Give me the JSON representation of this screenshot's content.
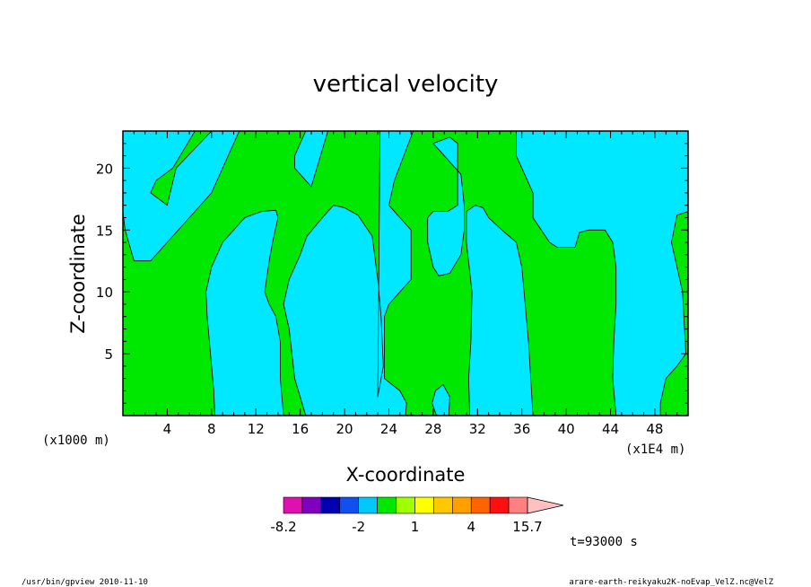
{
  "chart_data": {
    "type": "heatmap",
    "title": "vertical velocity",
    "xlabel": "X-coordinate",
    "ylabel": "Z-coordinate",
    "x_unit_left": "(x1000 m)",
    "x_unit_right": "(x1E4 m)",
    "xlim": [
      0,
      51
    ],
    "ylim": [
      0,
      23
    ],
    "x_ticks": [
      4,
      8,
      12,
      16,
      20,
      24,
      28,
      32,
      36,
      40,
      44,
      48
    ],
    "y_ticks": [
      5,
      10,
      15,
      20
    ],
    "colorbar": {
      "colors": [
        "#e010b0",
        "#8000c0",
        "#0000b0",
        "#1050f0",
        "#00c8f8",
        "#00e800",
        "#a0ff00",
        "#ffff00",
        "#ffc800",
        "#ffa000",
        "#ff6400",
        "#ff1010",
        "#ff8080",
        "#ffc0c0"
      ],
      "boundaries": [
        -8.2,
        -6.25,
        -4,
        -3,
        -2,
        -1,
        0,
        1,
        2,
        3,
        4,
        6.8,
        9.6,
        15.7
      ],
      "tick_labels": [
        "-8.2",
        "-2",
        "1",
        "4",
        "15.7"
      ],
      "tick_values": [
        -8.2,
        -2,
        1,
        4,
        15.7
      ]
    },
    "field_colors": {
      "negative": "#00e8ff",
      "positive": "#00e800"
    },
    "regions": [
      {
        "sign": "negative",
        "polygon": [
          [
            0,
            23
          ],
          [
            6.5,
            23
          ],
          [
            4.5,
            20
          ],
          [
            3,
            19
          ],
          [
            2.5,
            18
          ],
          [
            4,
            17
          ],
          [
            4.8,
            20
          ],
          [
            8,
            23
          ],
          [
            10.5,
            23
          ],
          [
            8,
            18
          ],
          [
            6,
            16
          ],
          [
            4,
            14
          ],
          [
            2.5,
            12.5
          ],
          [
            2,
            12.5
          ],
          [
            1,
            12.5
          ],
          [
            0.2,
            15
          ],
          [
            0,
            16.5
          ]
        ]
      },
      {
        "sign": "negative",
        "polygon": [
          [
            16.5,
            23
          ],
          [
            18.5,
            23
          ],
          [
            17.5,
            20
          ],
          [
            17,
            18.5
          ],
          [
            15.5,
            20
          ],
          [
            15.5,
            21
          ],
          [
            16,
            22
          ]
        ]
      },
      {
        "sign": "negative",
        "polygon": [
          [
            23.2,
            23
          ],
          [
            26.2,
            23
          ],
          [
            24.5,
            19
          ],
          [
            24,
            17
          ],
          [
            25,
            16
          ],
          [
            26,
            15
          ],
          [
            26,
            11
          ],
          [
            25,
            10
          ],
          [
            24,
            9
          ],
          [
            23.6,
            8
          ],
          [
            23.6,
            3
          ],
          [
            25,
            2
          ],
          [
            25.6,
            1
          ],
          [
            25.5,
            0
          ],
          [
            16.5,
            0
          ],
          [
            15.5,
            3
          ],
          [
            15,
            7
          ],
          [
            14.5,
            9
          ],
          [
            15,
            11
          ],
          [
            16,
            13
          ],
          [
            16.6,
            14.5
          ],
          [
            18,
            16
          ],
          [
            19,
            17
          ],
          [
            20,
            16.8
          ],
          [
            21.2,
            16.2
          ],
          [
            22.5,
            14.5
          ],
          [
            23,
            11
          ],
          [
            23.3,
            8
          ],
          [
            23.5,
            4
          ],
          [
            23,
            1.5
          ]
        ]
      },
      {
        "sign": "negative",
        "polygon": [
          [
            8.3,
            0
          ],
          [
            14.5,
            0
          ],
          [
            14.2,
            3
          ],
          [
            14.2,
            6
          ],
          [
            13.8,
            8
          ],
          [
            13.2,
            9
          ],
          [
            12.8,
            10
          ],
          [
            13.2,
            12.5
          ],
          [
            13.5,
            14
          ],
          [
            14,
            16
          ],
          [
            13.8,
            16.6
          ],
          [
            12.5,
            16.5
          ],
          [
            11,
            16
          ],
          [
            9,
            14
          ],
          [
            8,
            12
          ],
          [
            7.5,
            10
          ],
          [
            7.6,
            8
          ],
          [
            7.9,
            5
          ],
          [
            8.2,
            2
          ]
        ]
      },
      {
        "sign": "negative",
        "polygon": [
          [
            28.3,
            0
          ],
          [
            29.4,
            0
          ],
          [
            29.5,
            1.5
          ],
          [
            28.9,
            2.5
          ],
          [
            28.2,
            2
          ],
          [
            27.9,
            1
          ]
        ]
      },
      {
        "sign": "negative",
        "polygon": [
          [
            28,
            22
          ],
          [
            29.5,
            22.5
          ],
          [
            30.2,
            22
          ],
          [
            30.2,
            17
          ],
          [
            29.3,
            16.5
          ],
          [
            28,
            16.5
          ],
          [
            27.5,
            16
          ],
          [
            27.5,
            14
          ],
          [
            28,
            12
          ],
          [
            28.5,
            11.3
          ],
          [
            29.5,
            11.5
          ],
          [
            30.5,
            13
          ],
          [
            30.8,
            15
          ],
          [
            30.8,
            17
          ],
          [
            30.5,
            19.5
          ]
        ]
      },
      {
        "sign": "negative",
        "polygon": [
          [
            31.3,
            0
          ],
          [
            37,
            0
          ],
          [
            36.8,
            3
          ],
          [
            36.6,
            6
          ],
          [
            36.3,
            9
          ],
          [
            36,
            12
          ],
          [
            35.5,
            14
          ],
          [
            34.2,
            15
          ],
          [
            33,
            16
          ],
          [
            32.5,
            16.8
          ],
          [
            31.8,
            17
          ],
          [
            31,
            16.5
          ],
          [
            31,
            14
          ],
          [
            31.5,
            10
          ],
          [
            31.4,
            6
          ],
          [
            31.2,
            3
          ]
        ]
      },
      {
        "sign": "negative",
        "polygon": [
          [
            35.5,
            23
          ],
          [
            51,
            23
          ],
          [
            51,
            16.5
          ],
          [
            50,
            16.2
          ],
          [
            49.5,
            14
          ],
          [
            50.5,
            10
          ],
          [
            50.8,
            5
          ],
          [
            50,
            4
          ],
          [
            49,
            3
          ],
          [
            48.5,
            1
          ],
          [
            48.5,
            0
          ],
          [
            44.5,
            0
          ],
          [
            44.2,
            3
          ],
          [
            44.3,
            6
          ],
          [
            44.5,
            9
          ],
          [
            44.5,
            12
          ],
          [
            44.2,
            14
          ],
          [
            43.5,
            15
          ],
          [
            42,
            15
          ],
          [
            41.2,
            14.8
          ],
          [
            40.8,
            13.6
          ],
          [
            39.2,
            13.6
          ],
          [
            38.5,
            14
          ],
          [
            37,
            16
          ],
          [
            37,
            18
          ],
          [
            36,
            20
          ],
          [
            35.5,
            21
          ]
        ]
      }
    ]
  },
  "status": {
    "time": "t=93000 s"
  },
  "footer": {
    "left": "/usr/bin/gpview   2010-11-10",
    "right": "arare-earth-reikyaku2K-noEvap_VelZ.nc@VelZ"
  }
}
